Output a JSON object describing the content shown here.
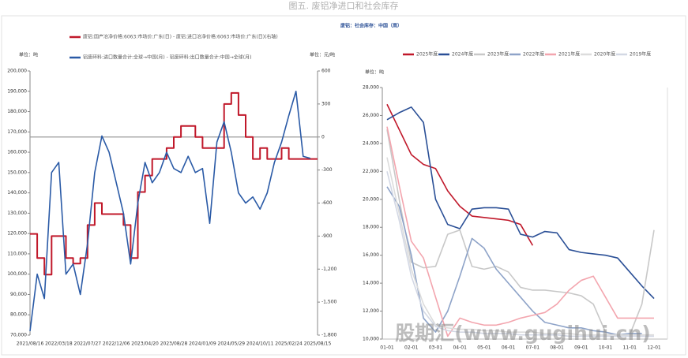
{
  "title": "图五. 废铝净进口和社会库存",
  "watermark": "股期汇(www.gugihui.cn)",
  "chart_data": [
    {
      "type": "line",
      "legend": "top",
      "y_label": "单位：吨",
      "y2_label": "单位：元/吨",
      "xticks": [
        "2021/08/16",
        "2022/03/18",
        "2022/07/27",
        "2022/12/06",
        "2023/04/20",
        "2023/08/28",
        "2024/01/09",
        "2024/05/29",
        "2024/10/11",
        "2025/02/24",
        "2025/08/15"
      ],
      "ylim": [
        70000,
        200000
      ],
      "yticks": [
        {
          "value": 70000,
          "label": "70,000"
        },
        {
          "value": 80000,
          "label": "80,000"
        },
        {
          "value": 90000,
          "label": "90,000"
        },
        {
          "value": 100000,
          "label": "100,000"
        },
        {
          "value": 110000,
          "label": "110,000"
        },
        {
          "value": 120000,
          "label": "120,000"
        },
        {
          "value": 130000,
          "label": "130,000"
        },
        {
          "value": 140000,
          "label": "140,000"
        },
        {
          "value": 150000,
          "label": "150,000"
        },
        {
          "value": 160000,
          "label": "160,000"
        },
        {
          "value": 170000,
          "label": "170,000"
        },
        {
          "value": 180000,
          "label": "180,000"
        },
        {
          "value": 190000,
          "label": "190,000"
        },
        {
          "value": 200000,
          "label": "200,000"
        }
      ],
      "y2lim": [
        -1800,
        600
      ],
      "y2ticks": [
        600,
        300,
        0,
        -300,
        -600,
        -900,
        {
          "value": -1200,
          "label": "-1,200"
        },
        {
          "value": -1500,
          "label": "-1,500"
        },
        {
          "value": -1800,
          "label": "-1,800"
        }
      ],
      "series": [
        {
          "name": "废铝:国产冶净价格:6063:市场价:广东(日) - 废铝:进口冶净价格:6063:市场价:广东(日)(右轴)",
          "color": "#c0182a",
          "axis": "y2",
          "step": true,
          "values": [
            -880,
            -1100,
            -1250,
            -900,
            -900,
            -1100,
            -1150,
            -1100,
            -800,
            -600,
            -700,
            -700,
            -700,
            -800,
            -1100,
            -500,
            -350,
            -200,
            -200,
            -100,
            0,
            100,
            100,
            0,
            -100,
            -100,
            -100,
            300,
            400,
            200,
            0,
            -200,
            -100,
            -200,
            -200,
            -100,
            -200,
            -200,
            -200,
            -200,
            -200
          ]
        },
        {
          "name": "铝废碎料:进口数量合计:全球→中国(月) - 铝废碎料:出口数量合计:中国→全球(月)",
          "color": "#2a5aa6",
          "values": [
            72000,
            100000,
            88000,
            150000,
            155000,
            100000,
            105000,
            90000,
            115000,
            150000,
            168000,
            160000,
            145000,
            130000,
            105000,
            135000,
            155000,
            145000,
            150000,
            160000,
            152000,
            150000,
            158000,
            150000,
            152000,
            125000,
            165000,
            175000,
            160000,
            140000,
            135000,
            138000,
            132000,
            140000,
            155000,
            165000,
            178000,
            190000,
            158000,
            157000,
            null
          ]
        }
      ]
    },
    {
      "type": "line",
      "title": "废铝：社会库存：中国（周）",
      "legend": "top",
      "y_label": "单位：吨",
      "xticks": [
        "01-01",
        "02-01",
        "03-01",
        "04-01",
        "05-01",
        "06-01",
        "07-01",
        "08-01",
        "09-01",
        "10-01",
        "11-01",
        "12-01"
      ],
      "ylim": [
        10000,
        28000
      ],
      "yticks": [
        {
          "value": 10000,
          "label": "10,000"
        },
        {
          "value": 12000,
          "label": "12,000"
        },
        {
          "value": 14000,
          "label": "14,000"
        },
        {
          "value": 16000,
          "label": "16,000"
        },
        {
          "value": 18000,
          "label": "18,000"
        },
        {
          "value": 20000,
          "label": "20,000"
        },
        {
          "value": 22000,
          "label": "22,000"
        },
        {
          "value": 24000,
          "label": "24,000"
        },
        {
          "value": 26000,
          "label": "26,000"
        },
        {
          "value": 28000,
          "label": "28,000"
        }
      ],
      "series": [
        {
          "name": "2025年度",
          "color": "#c0182a",
          "values": [
            26800,
            25000,
            23200,
            22500,
            22200,
            20600,
            19500,
            18800,
            18700,
            18600,
            18500,
            18200,
            16700,
            null,
            null,
            null,
            null,
            null,
            null,
            null,
            null,
            null,
            null
          ]
        },
        {
          "name": "2024年度",
          "color": "#2a4f96",
          "values": [
            25700,
            26200,
            26600,
            25500,
            20000,
            18200,
            17900,
            19300,
            19400,
            19400,
            19300,
            17500,
            17300,
            17700,
            17600,
            16400,
            16200,
            16100,
            16000,
            15800,
            14800,
            13800,
            12900
          ]
        },
        {
          "name": "2023年度",
          "color": "#c8c8c8",
          "values": [
            25000,
            20000,
            15500,
            15100,
            15200,
            17500,
            17800,
            15200,
            15000,
            15200,
            14800,
            13700,
            13500,
            13500,
            13400,
            13300,
            13100,
            12500,
            10500,
            10200,
            10300,
            12500,
            17800
          ]
        },
        {
          "name": "2022年度",
          "color": "#8ea3c8",
          "values": [
            20900,
            19500,
            16000,
            11500,
            10500,
            12000,
            14500,
            17200,
            16500,
            15000,
            14000,
            13000,
            12000,
            11200,
            11000,
            10800,
            10800,
            10600,
            10500,
            10300,
            10400,
            10400,
            null
          ]
        },
        {
          "name": "2021年度",
          "color": "#f3a5ae",
          "values": [
            25200,
            21000,
            17000,
            15800,
            13000,
            10200,
            11500,
            11200,
            11000,
            11000,
            11200,
            11500,
            11700,
            11900,
            12500,
            13500,
            14200,
            14500,
            13000,
            11500,
            11500,
            11500,
            11500
          ]
        },
        {
          "name": "2020年度",
          "color": "#dcdcdc",
          "values": [
            23000,
            19000,
            15000,
            12500,
            11000,
            10800,
            10700,
            10700,
            10600,
            10600,
            10500,
            10500,
            10500,
            10400,
            10400,
            10400,
            10300,
            10300,
            10300,
            10300,
            10300,
            10300,
            10300
          ]
        },
        {
          "name": "2019年度",
          "color": "#d3d8e4",
          "values": [
            22000,
            18500,
            14500,
            12000,
            10900,
            10600,
            10500,
            10500,
            10400,
            10400,
            10400,
            10300,
            10300,
            10300,
            10300,
            10200,
            10200,
            10200,
            10200,
            10200,
            10200,
            10200,
            10200
          ]
        }
      ]
    }
  ]
}
